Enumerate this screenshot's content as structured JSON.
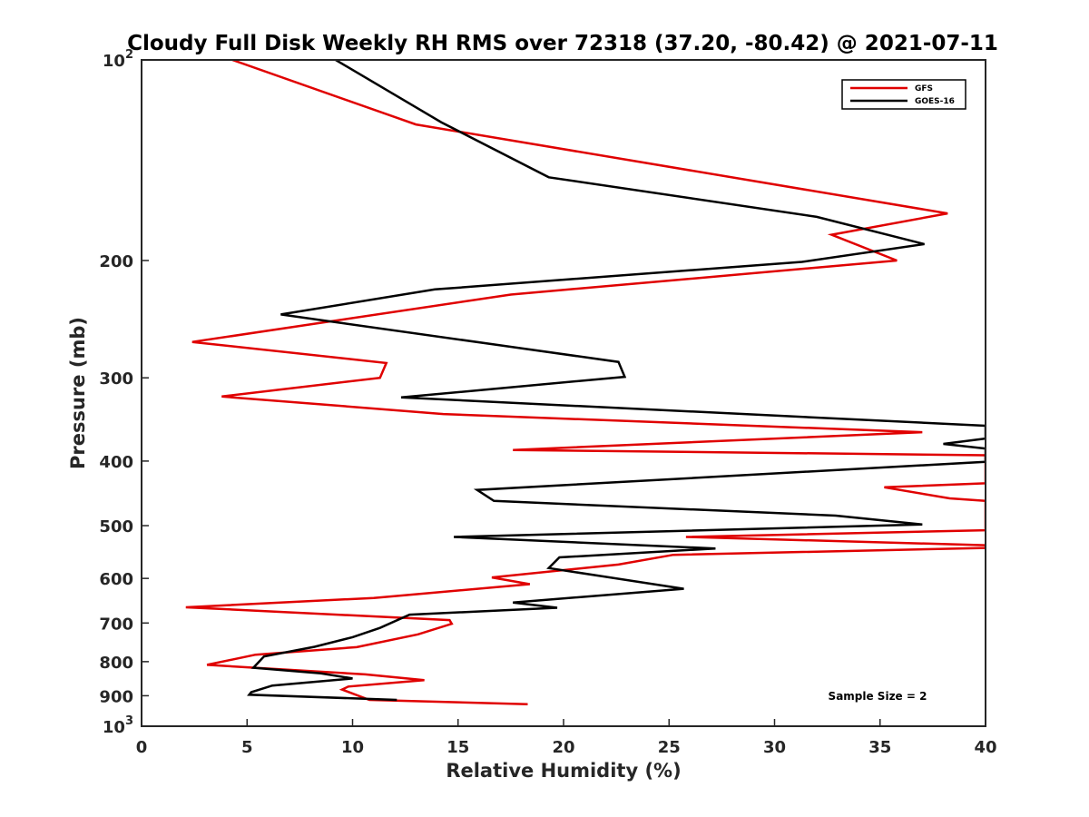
{
  "chart_data": {
    "type": "line",
    "title": "Cloudy Full Disk Weekly RH RMS over 72318 (37.20, -80.42) @ 2021-07-11",
    "xlabel": "Relative Humidity (%)",
    "ylabel": "Pressure (mb)",
    "xlim": [
      0,
      40
    ],
    "ylim": [
      100,
      1000
    ],
    "yscale": "log",
    "y_reversed": true,
    "xticks": [
      0,
      5,
      10,
      15,
      20,
      25,
      30,
      35,
      40
    ],
    "xtick_labels": [
      "0",
      "5",
      "10",
      "15",
      "20",
      "25",
      "30",
      "35",
      "40"
    ],
    "yticks": [
      100,
      200,
      300,
      400,
      500,
      600,
      700,
      800,
      900,
      1000
    ],
    "ytick_labels": [
      {
        "base": "10",
        "exp": "2"
      },
      {
        "base": "200"
      },
      {
        "base": "300"
      },
      {
        "base": "400"
      },
      {
        "base": "500"
      },
      {
        "base": "600"
      },
      {
        "base": "700"
      },
      {
        "base": "800"
      },
      {
        "base": "900"
      },
      {
        "base": "10",
        "exp": "3"
      }
    ],
    "legend_position": "top-right",
    "annotation": "Sample Size = 2",
    "series": [
      {
        "name": "GFS",
        "color": "#e00000",
        "points": [
          [
            4.3,
            100
          ],
          [
            13.0,
            125
          ],
          [
            38.2,
            170
          ],
          [
            32.7,
            183
          ],
          [
            35.8,
            200
          ],
          [
            17.5,
            225
          ],
          [
            2.4,
            265
          ],
          [
            11.6,
            285
          ],
          [
            11.3,
            300
          ],
          [
            3.8,
            320
          ],
          [
            14.3,
            340
          ],
          [
            37.0,
            362
          ],
          [
            17.6,
            385
          ],
          [
            40,
            392
          ],
          [
            40,
            432
          ],
          [
            35.2,
            438
          ],
          [
            38.3,
            455
          ],
          [
            40,
            459
          ],
          [
            40,
            508
          ],
          [
            25.8,
            520
          ],
          [
            40,
            535
          ],
          [
            40,
            540
          ],
          [
            25.2,
            553
          ],
          [
            22.6,
            572
          ],
          [
            16.6,
            598
          ],
          [
            18.4,
            612
          ],
          [
            11.0,
            642
          ],
          [
            2.1,
            663
          ],
          [
            14.6,
            693
          ],
          [
            14.7,
            702
          ],
          [
            13.1,
            728
          ],
          [
            10.2,
            761
          ],
          [
            5.4,
            781
          ],
          [
            3.1,
            809
          ],
          [
            10.6,
            836
          ],
          [
            13.4,
            853
          ],
          [
            9.8,
            872
          ],
          [
            9.5,
            881
          ],
          [
            10.8,
            913
          ],
          [
            18.3,
            927
          ]
        ]
      },
      {
        "name": "GOES-16",
        "color": "#000000",
        "points": [
          [
            9.2,
            100
          ],
          [
            14.2,
            124
          ],
          [
            19.3,
            150
          ],
          [
            32.0,
            172
          ],
          [
            37.1,
            189
          ],
          [
            31.3,
            201
          ],
          [
            13.9,
            221
          ],
          [
            6.6,
            241
          ],
          [
            22.6,
            284
          ],
          [
            22.9,
            299
          ],
          [
            12.3,
            321
          ],
          [
            40,
            354
          ],
          [
            40,
            370
          ],
          [
            38.0,
            377
          ],
          [
            40,
            383
          ],
          [
            40,
            401
          ],
          [
            15.9,
            442
          ],
          [
            16.7,
            459
          ],
          [
            32.9,
            483
          ],
          [
            37.0,
            498
          ],
          [
            14.8,
            520
          ],
          [
            27.2,
            541
          ],
          [
            19.8,
            558
          ],
          [
            19.3,
            579
          ],
          [
            25.7,
            622
          ],
          [
            17.6,
            652
          ],
          [
            19.7,
            664
          ],
          [
            12.7,
            680
          ],
          [
            11.3,
            712
          ],
          [
            10.0,
            735
          ],
          [
            8.2,
            760
          ],
          [
            5.8,
            786
          ],
          [
            5.3,
            817
          ],
          [
            8.5,
            833
          ],
          [
            10.0,
            848
          ],
          [
            6.2,
            869
          ],
          [
            5.2,
            889
          ],
          [
            5.1,
            897
          ],
          [
            12.1,
            913
          ]
        ]
      }
    ]
  }
}
